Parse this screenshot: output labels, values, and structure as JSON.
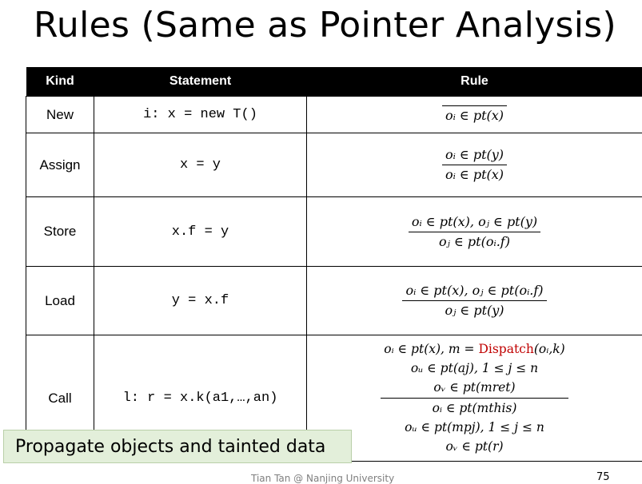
{
  "slide": {
    "title": "Rules (Same as Pointer Analysis)",
    "caption": "Propagate objects and tainted data",
    "footer": "Tian Tan @ Nanjing University",
    "page_number": "75"
  },
  "table": {
    "headers": [
      "Kind",
      "Statement",
      "Rule"
    ],
    "rows": [
      {
        "kind": "New",
        "statement": "i: x = new T()",
        "premises": [],
        "conclusion": "oᵢ ∈ pt(x)"
      },
      {
        "kind": "Assign",
        "statement": "x = y",
        "premises": [
          "oᵢ ∈ pt(y)"
        ],
        "conclusion": "oᵢ ∈ pt(x)"
      },
      {
        "kind": "Store",
        "statement": "x.f = y",
        "premises": [
          "oᵢ ∈ pt(x),  oⱼ ∈ pt(y)"
        ],
        "conclusion": "oⱼ ∈ pt(oᵢ.f)"
      },
      {
        "kind": "Load",
        "statement": "y = x.f",
        "premises": [
          "oᵢ ∈ pt(x),  oⱼ ∈ pt(oᵢ.f)"
        ],
        "conclusion": "oⱼ ∈ pt(y)"
      },
      {
        "kind": "Call",
        "statement": "l: r = x.k(a1,…,an)",
        "premises": [
          "oᵢ ∈ pt(x),  m = Dispatch(oᵢ,k)",
          "oᵤ ∈ pt(aj), 1 ≤ j ≤ n",
          "oᵥ ∈ pt(mret)"
        ],
        "conclusions": [
          "oᵢ ∈ pt(mthis)",
          "oᵤ ∈ pt(mpj), 1 ≤ j ≤ n",
          "oᵥ ∈ pt(r)"
        ]
      }
    ]
  }
}
